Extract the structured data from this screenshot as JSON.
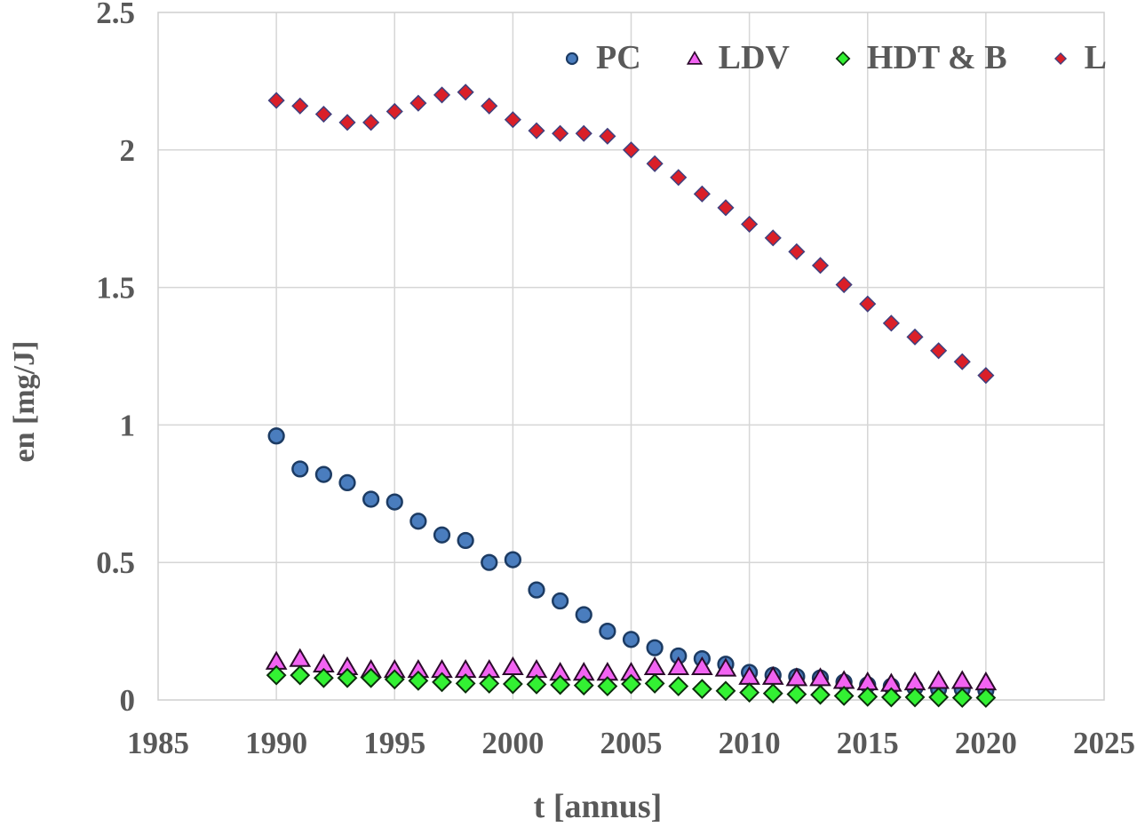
{
  "chart_data": {
    "type": "scatter",
    "title": "",
    "xlabel": "t [annus]",
    "ylabel": "en [mg/J]",
    "xlim": [
      1985,
      2025
    ],
    "ylim": [
      0,
      2.5
    ],
    "grid": true,
    "legend_position": "top-right-inside-plot",
    "x_ticks": [
      1985,
      1990,
      1995,
      2000,
      2005,
      2010,
      2015,
      2020,
      2025
    ],
    "x_tick_labels": [
      "1985",
      "1990",
      "1995",
      "2000",
      "2005",
      "2010",
      "2015",
      "2020",
      "2025"
    ],
    "y_ticks": [
      0,
      0.5,
      1,
      1.5,
      2,
      2.5
    ],
    "y_tick_labels": [
      "0",
      "0.5",
      "1",
      "1.5",
      "2",
      "2.5"
    ],
    "x": [
      1990,
      1991,
      1992,
      1993,
      1994,
      1995,
      1996,
      1997,
      1998,
      1999,
      2000,
      2001,
      2002,
      2003,
      2004,
      2005,
      2006,
      2007,
      2008,
      2009,
      2010,
      2011,
      2012,
      2013,
      2014,
      2015,
      2016,
      2017,
      2018,
      2019,
      2020
    ],
    "series": [
      {
        "name": "PC",
        "marker": "circle",
        "fill": "#4a7dbe",
        "stroke": "#1c3b63",
        "stroke_width": 2.5,
        "size": 19,
        "values": [
          0.96,
          0.84,
          0.82,
          0.79,
          0.73,
          0.72,
          0.65,
          0.6,
          0.58,
          0.5,
          0.51,
          0.4,
          0.36,
          0.31,
          0.25,
          0.22,
          0.19,
          0.16,
          0.15,
          0.13,
          0.1,
          0.09,
          0.085,
          0.08,
          0.065,
          0.055,
          0.05,
          0.045,
          0.04,
          0.04,
          0.035
        ]
      },
      {
        "name": "LDV",
        "marker": "triangle",
        "fill": "#f263f2",
        "stroke": "#2b0b2b",
        "stroke_width": 2,
        "size": 20,
        "values": [
          0.14,
          0.15,
          0.13,
          0.12,
          0.11,
          0.11,
          0.11,
          0.11,
          0.11,
          0.11,
          0.12,
          0.11,
          0.1,
          0.1,
          0.1,
          0.1,
          0.12,
          0.12,
          0.12,
          0.115,
          0.085,
          0.085,
          0.08,
          0.08,
          0.07,
          0.065,
          0.06,
          0.065,
          0.07,
          0.07,
          0.065
        ]
      },
      {
        "name": "HDT & B",
        "marker": "diamond",
        "fill": "#33f133",
        "stroke": "#0c300c",
        "stroke_width": 2,
        "size": 20,
        "values": [
          0.09,
          0.09,
          0.08,
          0.08,
          0.08,
          0.075,
          0.07,
          0.065,
          0.06,
          0.06,
          0.058,
          0.057,
          0.055,
          0.053,
          0.05,
          0.058,
          0.06,
          0.05,
          0.04,
          0.033,
          0.027,
          0.024,
          0.021,
          0.019,
          0.015,
          0.012,
          0.01,
          0.01,
          0.01,
          0.008,
          0.008
        ]
      },
      {
        "name": "L",
        "marker": "diamond",
        "fill": "#da1f28",
        "stroke": "#40407e",
        "stroke_width": 1.5,
        "size": 17,
        "values": [
          2.18,
          2.16,
          2.13,
          2.1,
          2.1,
          2.14,
          2.17,
          2.2,
          2.21,
          2.16,
          2.11,
          2.07,
          2.06,
          2.06,
          2.05,
          2.0,
          1.95,
          1.9,
          1.84,
          1.79,
          1.73,
          1.68,
          1.63,
          1.58,
          1.51,
          1.44,
          1.37,
          1.32,
          1.27,
          1.23,
          1.18
        ]
      }
    ]
  },
  "colors": {
    "text": "#595959",
    "gridline": "#d6d6d6",
    "plot_border": "#cfcfcf",
    "background": "#ffffff"
  }
}
